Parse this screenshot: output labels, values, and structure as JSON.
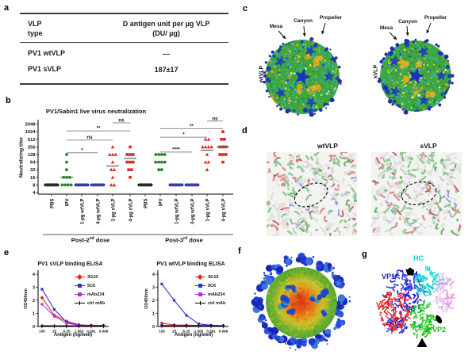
{
  "figure": {
    "panel_letters": {
      "a": "a",
      "b": "b",
      "c": "c",
      "d": "d",
      "e": "e",
      "f": "f",
      "g": "g"
    }
  },
  "panel_a": {
    "header_col1_line1": "VLP",
    "header_col1_line2": "type",
    "header_col2_line1": "D antigen unit per µg VLP",
    "header_col2_line2": "(DU/ µg)",
    "rows": [
      {
        "type": "PV1 wtVLP",
        "value": "---"
      },
      {
        "type": "PV1 sVLP",
        "value": "187±17"
      }
    ]
  },
  "panel_c": {
    "maps": [
      {
        "name": "wtVLP",
        "annotations": [
          "Mesa",
          "Canyon",
          "Propeller"
        ]
      },
      {
        "name": "sVLP",
        "annotations": [
          "Mesa",
          "Canyon",
          "Propeller"
        ]
      }
    ]
  },
  "panel_d": {
    "titles": [
      "wtVLP",
      "sVLP"
    ]
  },
  "panel_g": {
    "labels": [
      {
        "text": "HC",
        "color": "#00cccc"
      },
      {
        "text": "VP1",
        "color": "#2222cc"
      },
      {
        "text": "VP3",
        "color": "#e01616"
      },
      {
        "text": "LC",
        "color": "#ee88ee"
      },
      {
        "text": "VP2",
        "color": "#22b422"
      }
    ]
  },
  "chart_data": [
    {
      "id": "pv1_sabin1_neutralization",
      "type": "scatter",
      "title": "PV1/Sabin1 live virus neutralization",
      "ylabel": "Neutralizing titer",
      "yscale": "log2",
      "ylim": [
        4,
        2048
      ],
      "yticks": [
        4,
        8,
        16,
        32,
        64,
        128,
        256,
        512,
        1024,
        2048
      ],
      "groups": [
        {
          "label_pre": "Post-2",
          "label_sup": "nd",
          "label_post": " dose",
          "columns": [
            {
              "label": "PBS",
              "color": "#000000",
              "marker": "circle",
              "values": [
                8,
                8,
                8,
                8,
                8,
                8,
                8,
                8,
                8,
                8
              ],
              "median": 8
            },
            {
              "label": "IPV",
              "color": "#168c16",
              "marker": "circle",
              "values": [
                128,
                64,
                32,
                16,
                16,
                16,
                8,
                8,
                8,
                8
              ],
              "median": 16
            },
            {
              "label": "1-µg wtVLP",
              "color": "#2222cc",
              "marker": "circle",
              "values": [
                8,
                8,
                8,
                8,
                8,
                8,
                8,
                8,
                8,
                8
              ],
              "median": 8
            },
            {
              "label": "4-µg wtVLP",
              "color": "#2222cc",
              "marker": "circle",
              "values": [
                8,
                8,
                8,
                8,
                8,
                8,
                8,
                8,
                8,
                8
              ],
              "median": 8
            },
            {
              "label": "1-µg sVLP",
              "color": "#e52320",
              "marker": "triangle",
              "values": [
                256,
                128,
                128,
                128,
                64,
                32,
                32,
                16,
                8,
                8
              ],
              "median": 45
            },
            {
              "label": "4-µg sVLP",
              "color": "#e52320",
              "marker": "square",
              "values": [
                256,
                128,
                128,
                128,
                64,
                64,
                64,
                32,
                32,
                16
              ],
              "median": 90
            }
          ],
          "comparisons": [
            {
              "a": 1,
              "b": 3,
              "label": "*",
              "y": 150
            },
            {
              "a": 1,
              "b": 4,
              "label": "ns",
              "y": 480
            },
            {
              "a": 1,
              "b": 5,
              "label": "**",
              "y": 1100
            },
            {
              "a": 4,
              "b": 5,
              "label": "ns",
              "y": 2300
            }
          ]
        },
        {
          "label_pre": "Post-3",
          "label_sup": "rd",
          "label_post": " dose",
          "columns": [
            {
              "label": "PBS",
              "color": "#000000",
              "marker": "circle",
              "values": [
                8,
                8,
                8,
                8,
                8,
                8,
                8,
                8,
                8,
                8
              ],
              "median": 8
            },
            {
              "label": "IPV",
              "color": "#168c16",
              "marker": "circle",
              "values": [
                128,
                128,
                128,
                128,
                64,
                64,
                64,
                64,
                32,
                32
              ],
              "median": 64
            },
            {
              "label": "1-µg wtVLP",
              "color": "#2222cc",
              "marker": "circle",
              "values": [
                8,
                8,
                8,
                8,
                8,
                8,
                8,
                8,
                8,
                8
              ],
              "median": 8
            },
            {
              "label": "4-µg wtVLP",
              "color": "#2222cc",
              "marker": "circle",
              "values": [
                8,
                8,
                8,
                8,
                8,
                8,
                8,
                8,
                8,
                8
              ],
              "median": 8
            },
            {
              "label": "1-µg sVLP",
              "color": "#e52320",
              "marker": "triangle",
              "values": [
                512,
                512,
                256,
                256,
                256,
                256,
                128,
                64,
                64,
                32
              ],
              "median": 190
            },
            {
              "label": "4-µg sVLP",
              "color": "#e52320",
              "marker": "square",
              "values": [
                1024,
                512,
                512,
                256,
                256,
                256,
                128,
                128,
                128,
                64
              ],
              "median": 256
            }
          ],
          "comparisons": [
            {
              "a": 1,
              "b": 3,
              "label": "****",
              "y": 160
            },
            {
              "a": 1,
              "b": 4,
              "label": "*",
              "y": 620
            },
            {
              "a": 1,
              "b": 5,
              "label": "**",
              "y": 1350
            },
            {
              "a": 4,
              "b": 5,
              "label": "ns",
              "y": 2700
            }
          ]
        }
      ]
    },
    {
      "id": "pv1_svlp_binding_elisa",
      "type": "line",
      "title": "PV1 sVLP binding ELISA",
      "xlabel": "Antigen (ng/well)",
      "ylabel": "OD450nm",
      "x_categories": [
        "100",
        "25",
        "6.25",
        "1.563",
        "0.391",
        "0.098"
      ],
      "ylim": [
        0,
        4
      ],
      "yticks": [
        0,
        1,
        2,
        3,
        4
      ],
      "legend_position": "right",
      "series": [
        {
          "name": "3G10",
          "color": "#e62420",
          "marker": "diamond",
          "values": [
            2.2,
            0.85,
            0.4,
            0.13,
            0.08,
            0.08
          ]
        },
        {
          "name": "5C6",
          "color": "#2b35cc",
          "marker": "square",
          "values": [
            2.85,
            1.3,
            0.33,
            0.12,
            0.07,
            0.06
          ]
        },
        {
          "name": "mAb234",
          "color": "#b332d6",
          "marker": "square",
          "values": [
            1.7,
            0.78,
            0.25,
            0.1,
            0.06,
            0.05
          ]
        },
        {
          "name": "ctrl mAb",
          "color": "#000000",
          "marker": "plus",
          "values": [
            0.06,
            0.05,
            0.05,
            0.05,
            0.05,
            0.05
          ]
        }
      ]
    },
    {
      "id": "pv1_wtvlp_binding_elisa",
      "type": "line",
      "title": "PV1 wtVLP binding ELISA",
      "xlabel": "Antigen (ng/well)",
      "ylabel": "OD450nm",
      "x_categories": [
        "100",
        "25",
        "6.25",
        "1.563",
        "0.391",
        "0.098"
      ],
      "ylim": [
        0,
        4
      ],
      "yticks": [
        0,
        1,
        2,
        3,
        4
      ],
      "legend_position": "right",
      "series": [
        {
          "name": "3G10",
          "color": "#e62420",
          "marker": "diamond",
          "values": [
            0.25,
            0.12,
            0.1,
            0.08,
            0.07,
            0.06
          ]
        },
        {
          "name": "5C6",
          "color": "#2b35cc",
          "marker": "square",
          "values": [
            3.25,
            2.0,
            0.85,
            0.2,
            0.09,
            0.06
          ]
        },
        {
          "name": "mAb234",
          "color": "#b332d6",
          "marker": "square",
          "values": [
            0.08,
            0.06,
            0.05,
            0.05,
            0.05,
            0.05
          ]
        },
        {
          "name": "ctrl mAb",
          "color": "#000000",
          "marker": "plus",
          "values": [
            0.06,
            0.05,
            0.05,
            0.05,
            0.05,
            0.05
          ]
        }
      ]
    }
  ]
}
